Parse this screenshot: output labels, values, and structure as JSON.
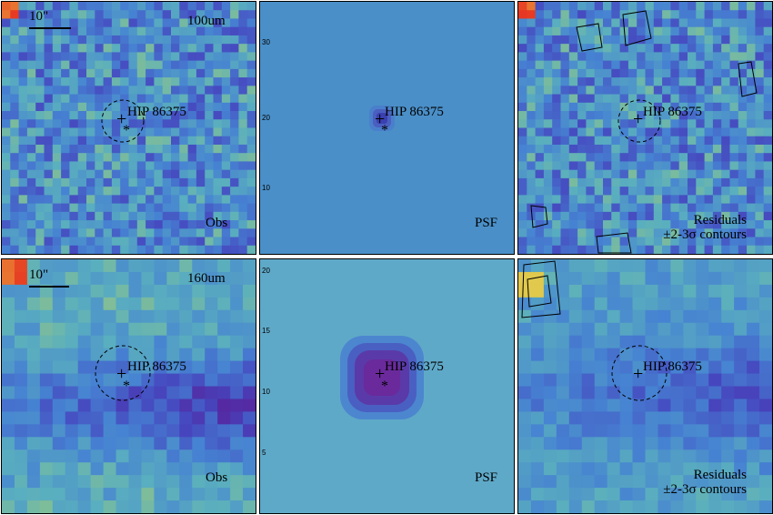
{
  "rows": [
    {
      "band": "100um",
      "scale_bar": "10\"",
      "panels": [
        {
          "label": "Obs",
          "target": "HIP 86375",
          "base_color": "#4a8cd1",
          "has_hotspot": true,
          "hotspot_color": "#e23a1f"
        },
        {
          "label": "PSF",
          "target": "HIP 86375",
          "base_color": "#4a8fc8"
        },
        {
          "label_lines": [
            "Residuals",
            "±2-3σ contours"
          ],
          "target": "HIP 86375",
          "base_color": "#4a8cd1",
          "has_hotspot": true,
          "hotspot_color": "#e23a1f"
        }
      ],
      "psf_axis_ticks": [
        "30",
        "20",
        "10"
      ]
    },
    {
      "band": "160um",
      "scale_bar": "10\"",
      "panels": [
        {
          "label": "Obs",
          "target": "HIP 86375",
          "base_color": "#4b7fcf",
          "has_hotspot": true,
          "hotspot_color": "#e23a1f"
        },
        {
          "label": "PSF",
          "target": "HIP 86375",
          "base_color": "#5fa9c8"
        },
        {
          "label_lines": [
            "Residuals",
            "±2-3σ contours"
          ],
          "target": "HIP 86375",
          "base_color": "#4b8fd0",
          "has_hotspot": true,
          "hotspot_color": "#e8a23a"
        }
      ],
      "psf_axis_ticks": [
        "20",
        "15",
        "10",
        "5"
      ]
    }
  ]
}
